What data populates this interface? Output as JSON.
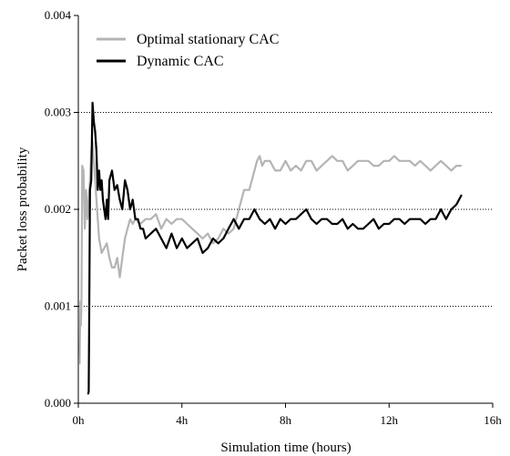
{
  "chart_data": {
    "type": "line",
    "title": "",
    "xlabel": "Simulation time (hours)",
    "ylabel": "Packet loss probability",
    "xlim": [
      0,
      16
    ],
    "ylim": [
      0,
      0.004
    ],
    "x_ticks": [
      {
        "value": 0,
        "label": "0h"
      },
      {
        "value": 4,
        "label": "4h"
      },
      {
        "value": 8,
        "label": "8h"
      },
      {
        "value": 12,
        "label": "12h"
      },
      {
        "value": 16,
        "label": "16h"
      }
    ],
    "y_ticks": [
      {
        "value": 0,
        "label": "0.000"
      },
      {
        "value": 0.001,
        "label": "0.001"
      },
      {
        "value": 0.002,
        "label": "0.002"
      },
      {
        "value": 0.003,
        "label": "0.003"
      },
      {
        "value": 0.004,
        "label": "0.004"
      }
    ],
    "grid": {
      "horizontal_dotted": [
        0.001,
        0.002,
        0.003
      ]
    },
    "legend_position": "top-left",
    "series": [
      {
        "name": "Optimal stationary CAC",
        "color": "#b4b4b4",
        "x": [
          0.05,
          0.08,
          0.1,
          0.12,
          0.15,
          0.2,
          0.25,
          0.3,
          0.35,
          0.4,
          0.45,
          0.5,
          0.55,
          0.6,
          0.7,
          0.8,
          0.9,
          1.0,
          1.1,
          1.2,
          1.3,
          1.4,
          1.5,
          1.6,
          1.7,
          1.8,
          1.9,
          2.0,
          2.1,
          2.2,
          2.4,
          2.6,
          2.8,
          3.0,
          3.2,
          3.4,
          3.6,
          3.8,
          4.0,
          4.2,
          4.4,
          4.6,
          4.8,
          5.0,
          5.2,
          5.4,
          5.6,
          5.8,
          6.0,
          6.2,
          6.4,
          6.6,
          6.8,
          6.9,
          7.0,
          7.1,
          7.2,
          7.4,
          7.6,
          7.8,
          8.0,
          8.2,
          8.4,
          8.6,
          8.8,
          9.0,
          9.2,
          9.4,
          9.6,
          9.8,
          10.0,
          10.2,
          10.4,
          10.6,
          10.8,
          11.0,
          11.2,
          11.4,
          11.6,
          11.8,
          12.0,
          12.2,
          12.4,
          12.6,
          12.8,
          13.0,
          13.2,
          13.4,
          13.6,
          13.8,
          14.0,
          14.2,
          14.4,
          14.6,
          14.8
        ],
        "values": [
          0.0004,
          0.00105,
          0.0008,
          0.001,
          0.00245,
          0.0024,
          0.0018,
          0.0022,
          0.0019,
          0.0021,
          0.0023,
          0.0026,
          0.0027,
          0.0025,
          0.0021,
          0.0017,
          0.00155,
          0.0016,
          0.00165,
          0.0015,
          0.0014,
          0.0014,
          0.0015,
          0.0013,
          0.0015,
          0.0017,
          0.0018,
          0.0019,
          0.00185,
          0.0019,
          0.00185,
          0.0019,
          0.0019,
          0.00195,
          0.0018,
          0.0019,
          0.00185,
          0.0019,
          0.0019,
          0.00185,
          0.0018,
          0.00175,
          0.0017,
          0.00175,
          0.00165,
          0.0017,
          0.0018,
          0.00175,
          0.0018,
          0.002,
          0.0022,
          0.0022,
          0.0024,
          0.0025,
          0.00255,
          0.00245,
          0.0025,
          0.0025,
          0.0024,
          0.0024,
          0.0025,
          0.0024,
          0.00245,
          0.0024,
          0.0025,
          0.0025,
          0.0024,
          0.00245,
          0.0025,
          0.00255,
          0.0025,
          0.0025,
          0.0024,
          0.00245,
          0.0025,
          0.0025,
          0.0025,
          0.00245,
          0.00245,
          0.0025,
          0.0025,
          0.00255,
          0.0025,
          0.0025,
          0.0025,
          0.00245,
          0.0025,
          0.00245,
          0.0024,
          0.00245,
          0.0025,
          0.00245,
          0.0024,
          0.00245,
          0.00245
        ]
      },
      {
        "name": "Dynamic CAC",
        "color": "#000000",
        "x": [
          0.35,
          0.38,
          0.4,
          0.42,
          0.45,
          0.5,
          0.55,
          0.6,
          0.65,
          0.7,
          0.75,
          0.8,
          0.85,
          0.9,
          0.95,
          1.0,
          1.05,
          1.1,
          1.15,
          1.2,
          1.3,
          1.4,
          1.5,
          1.6,
          1.7,
          1.8,
          1.9,
          2.0,
          2.1,
          2.2,
          2.3,
          2.4,
          2.5,
          2.6,
          2.8,
          3.0,
          3.2,
          3.4,
          3.6,
          3.8,
          4.0,
          4.2,
          4.4,
          4.6,
          4.8,
          5.0,
          5.2,
          5.4,
          5.6,
          5.8,
          6.0,
          6.2,
          6.4,
          6.6,
          6.8,
          7.0,
          7.2,
          7.4,
          7.6,
          7.8,
          8.0,
          8.2,
          8.4,
          8.6,
          8.8,
          9.0,
          9.2,
          9.4,
          9.6,
          9.8,
          10.0,
          10.2,
          10.4,
          10.6,
          10.8,
          11.0,
          11.2,
          11.4,
          11.6,
          11.8,
          12.0,
          12.2,
          12.4,
          12.6,
          12.8,
          13.0,
          13.2,
          13.4,
          13.6,
          13.8,
          14.0,
          14.2,
          14.4,
          14.6,
          14.8
        ],
        "values": [
          0.0001,
          0.0001,
          0.00012,
          0.0008,
          0.0022,
          0.0023,
          0.0031,
          0.0029,
          0.0028,
          0.0026,
          0.0022,
          0.0024,
          0.0022,
          0.0023,
          0.0021,
          0.002,
          0.0019,
          0.0021,
          0.0019,
          0.0023,
          0.0024,
          0.0022,
          0.00225,
          0.0021,
          0.002,
          0.0023,
          0.0022,
          0.002,
          0.0021,
          0.0019,
          0.0019,
          0.0018,
          0.0018,
          0.0017,
          0.00175,
          0.0018,
          0.0017,
          0.0016,
          0.00175,
          0.0016,
          0.0017,
          0.0016,
          0.00165,
          0.0017,
          0.00155,
          0.0016,
          0.0017,
          0.00165,
          0.0017,
          0.0018,
          0.0019,
          0.0018,
          0.0019,
          0.0019,
          0.002,
          0.0019,
          0.00185,
          0.0019,
          0.0018,
          0.0019,
          0.00185,
          0.0019,
          0.0019,
          0.00195,
          0.002,
          0.0019,
          0.00185,
          0.0019,
          0.0019,
          0.00185,
          0.00185,
          0.0019,
          0.0018,
          0.00185,
          0.0018,
          0.0018,
          0.00185,
          0.0019,
          0.0018,
          0.00185,
          0.00185,
          0.0019,
          0.0019,
          0.00185,
          0.0019,
          0.0019,
          0.0019,
          0.00185,
          0.0019,
          0.0019,
          0.002,
          0.0019,
          0.002,
          0.00205,
          0.00215
        ]
      }
    ]
  }
}
